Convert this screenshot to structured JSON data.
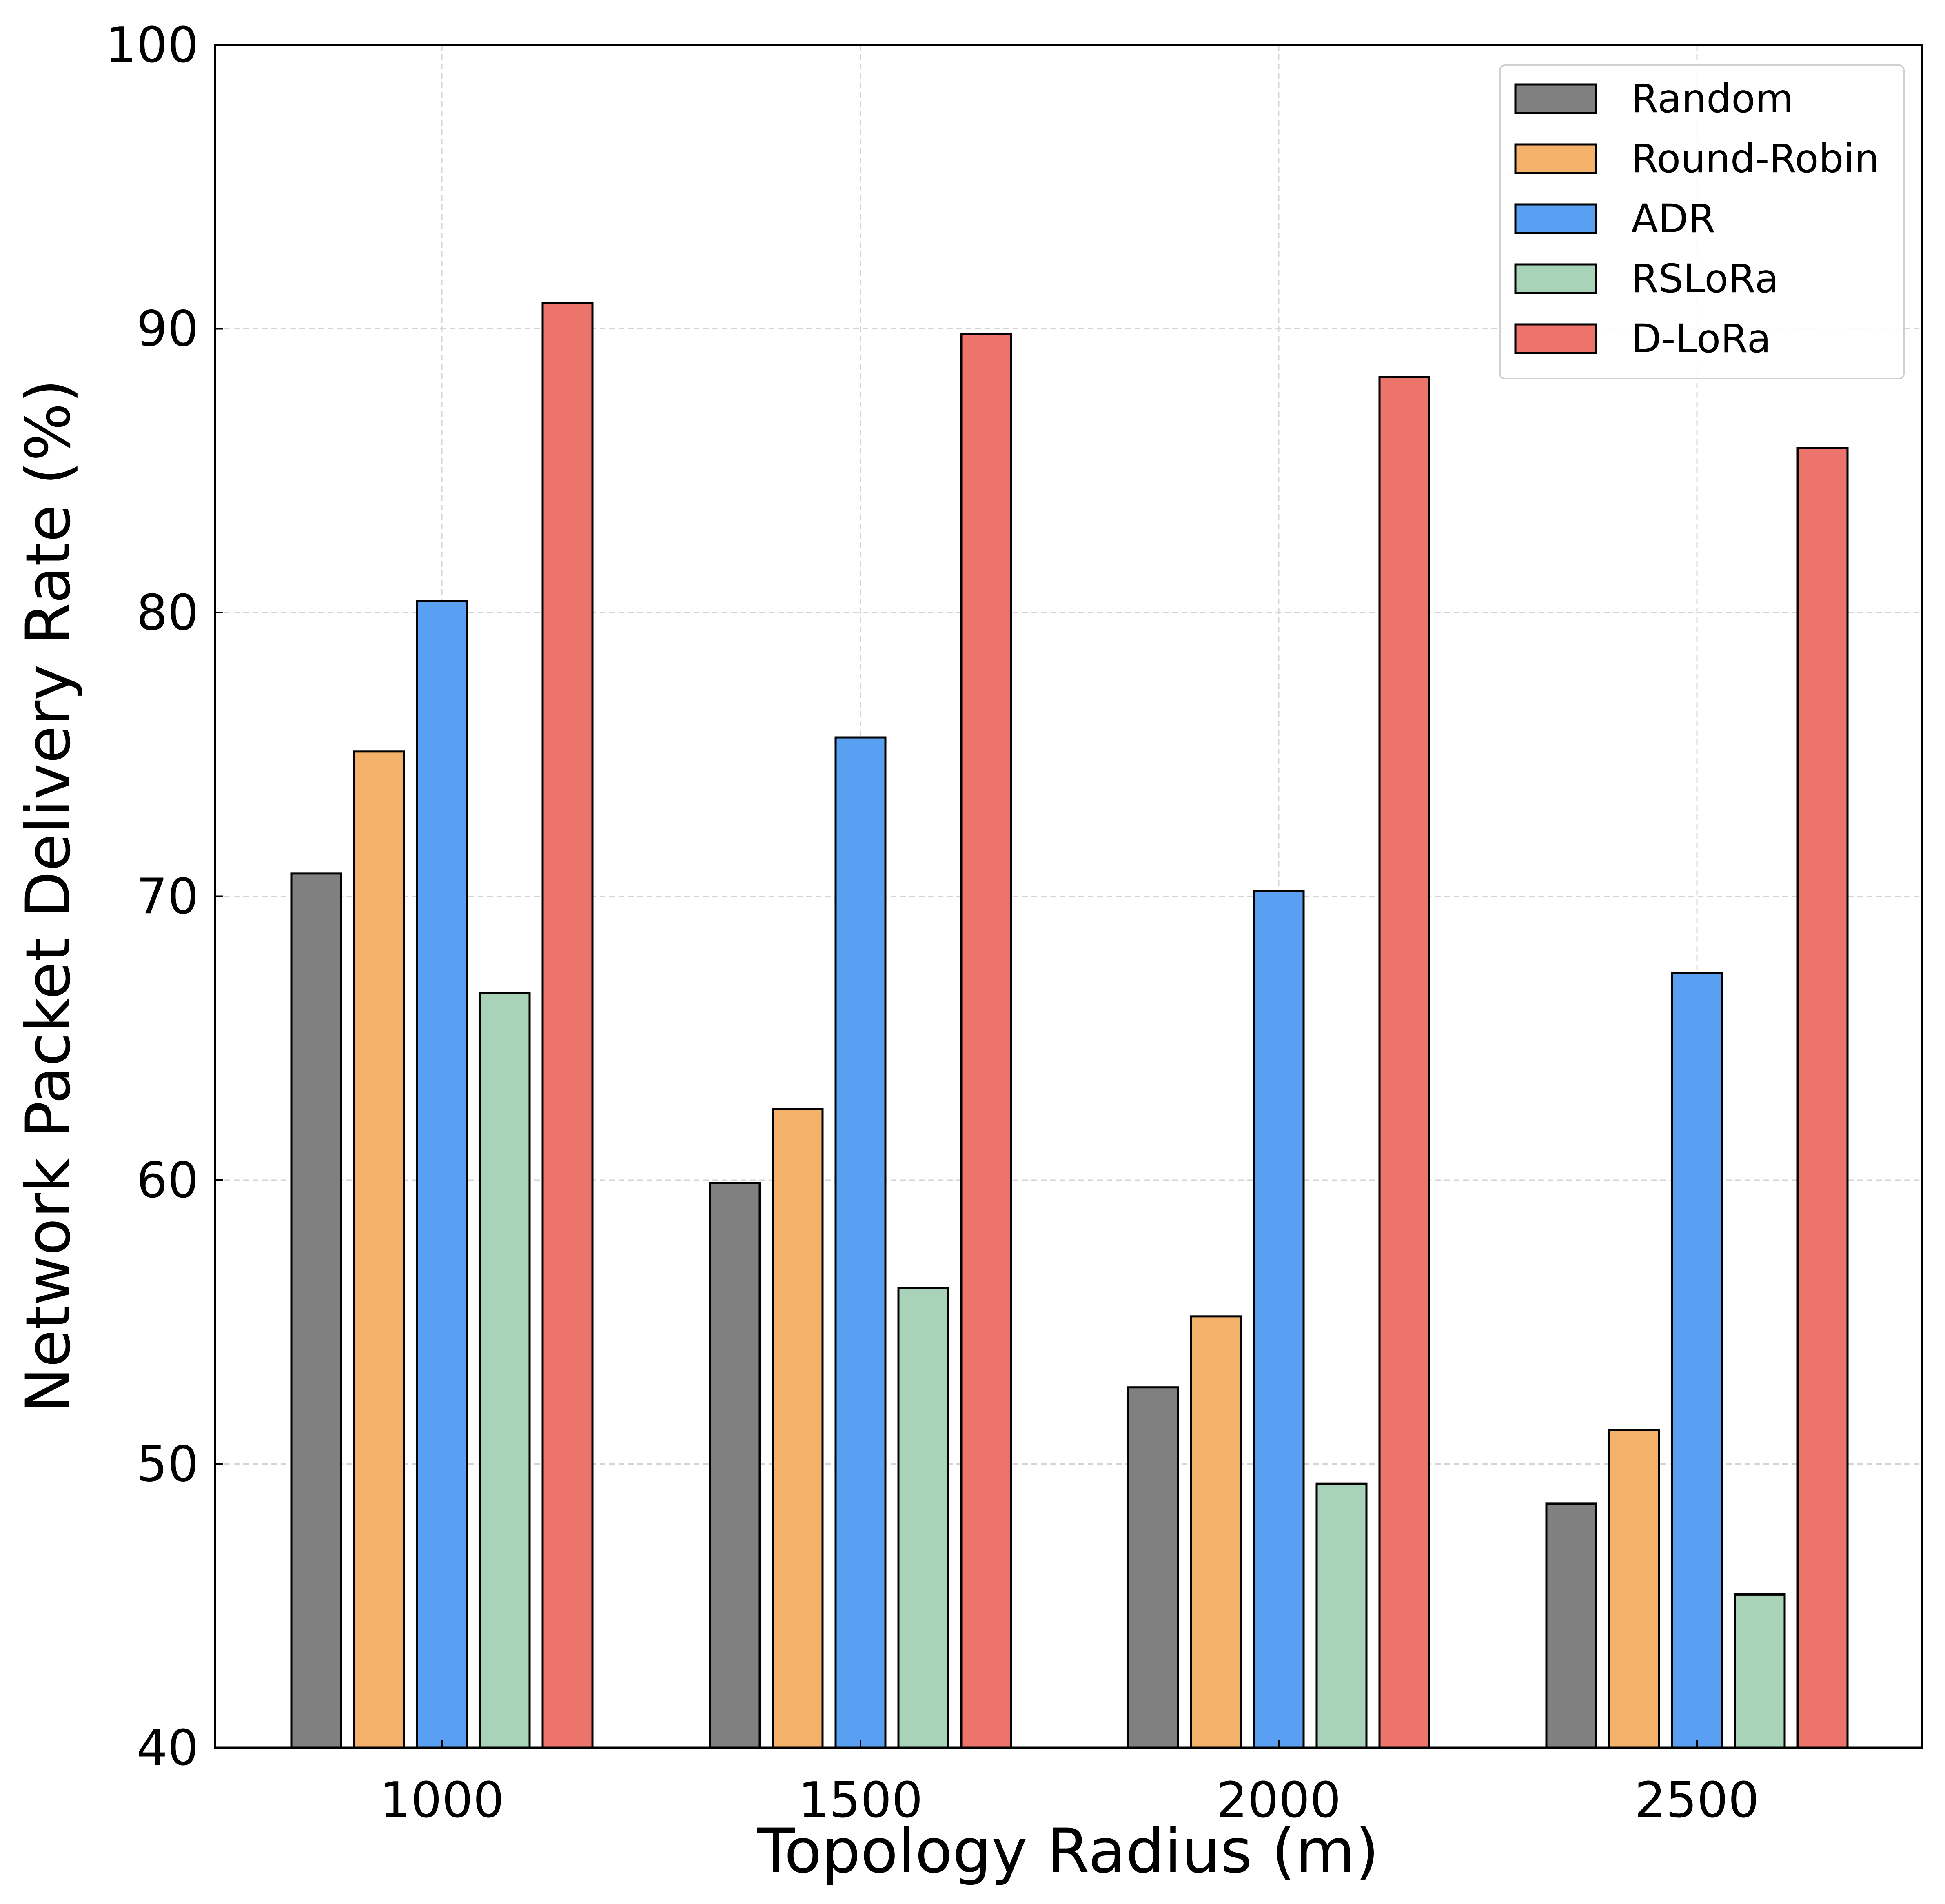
{
  "chart_data": {
    "type": "bar",
    "title": "",
    "xlabel": "Topology Radius (m)",
    "ylabel": "Network Packet Delivery Rate (%)",
    "categories": [
      "1000",
      "1500",
      "2000",
      "2500"
    ],
    "ylim": [
      40,
      100
    ],
    "yticks": [
      "40",
      "50",
      "60",
      "70",
      "80",
      "90",
      "100"
    ],
    "ytick_values": [
      40,
      50,
      60,
      70,
      80,
      90,
      100
    ],
    "grid": true,
    "legend_position": "top-right",
    "series": [
      {
        "name": "Random",
        "color": "#808080",
        "values": [
          70.8,
          59.9,
          52.7,
          48.6
        ]
      },
      {
        "name": "Round-Robin",
        "color": "#f4b16a",
        "values": [
          75.1,
          62.5,
          55.2,
          51.2
        ]
      },
      {
        "name": "ADR",
        "color": "#5aa0f2",
        "values": [
          80.4,
          75.6,
          70.2,
          67.3
        ]
      },
      {
        "name": "RSLoRa",
        "color": "#a8d3b9",
        "values": [
          66.6,
          56.2,
          49.3,
          45.4
        ]
      },
      {
        "name": "D-LoRa",
        "color": "#ec746b",
        "values": [
          90.9,
          89.8,
          88.3,
          85.8
        ]
      }
    ]
  }
}
